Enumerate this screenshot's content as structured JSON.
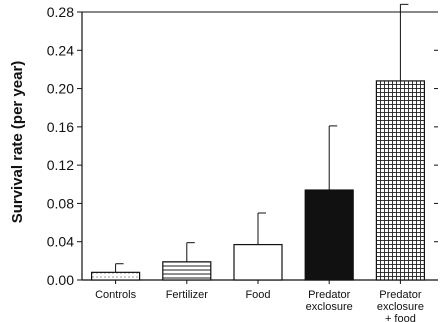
{
  "chart_data": {
    "type": "bar",
    "title": "",
    "xlabel": "",
    "ylabel": "Survival rate (per year)",
    "ylim": [
      0,
      0.28
    ],
    "yticks": [
      "0.00",
      "0.04",
      "0.08",
      "0.12",
      "0.16",
      "0.20",
      "0.24",
      "0.28"
    ],
    "grid": false,
    "legend": "none",
    "categories": [
      [
        "Controls"
      ],
      [
        "Fertilizer"
      ],
      [
        "Food"
      ],
      [
        "Predator",
        "exclosure"
      ],
      [
        "Predator",
        "exclosure",
        "+ food"
      ]
    ],
    "values": [
      0.008,
      0.019,
      0.037,
      0.094,
      0.208
    ],
    "error_upper": [
      0.017,
      0.039,
      0.07,
      0.161,
      0.288
    ],
    "fills": [
      "dotted",
      "horizontal-lines",
      "white",
      "black",
      "grid"
    ]
  }
}
